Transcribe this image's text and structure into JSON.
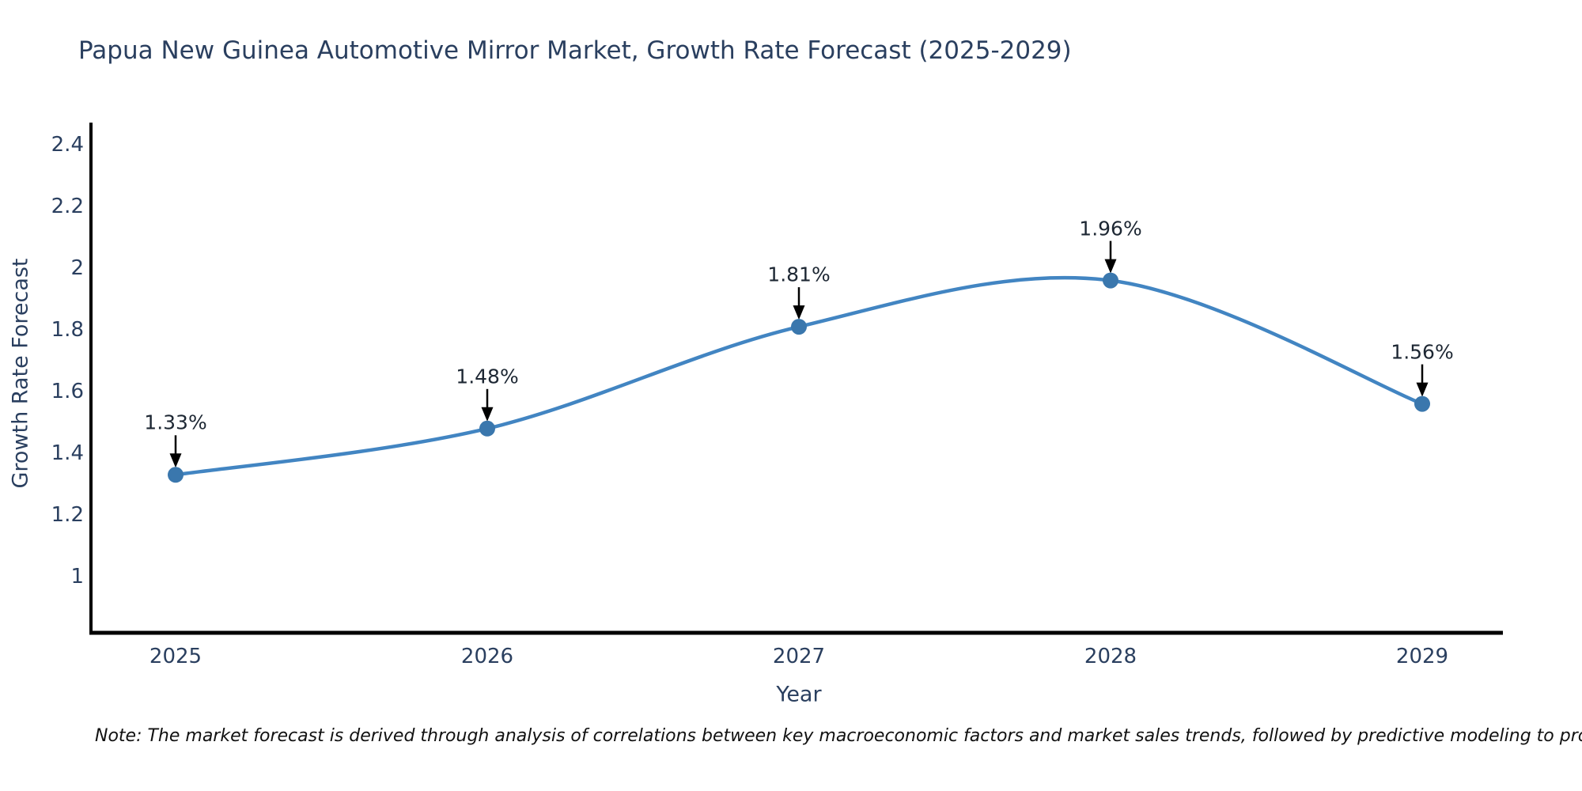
{
  "title": "Papua New Guinea Automotive Mirror Market, Growth Rate Forecast (2025-2029)",
  "note": "Note: The market forecast is derived through analysis of correlations between key macroeconomic factors and market sales trends, followed by predictive modeling to project future sales",
  "chart_data": {
    "type": "line",
    "line_shape": "spline",
    "title": "Papua New Guinea Automotive Mirror Market, Growth Rate Forecast (2025-2029)",
    "xlabel": "Year",
    "ylabel": "Growth Rate Forecast",
    "x": [
      "2025",
      "2026",
      "2027",
      "2028",
      "2029"
    ],
    "series": [
      {
        "name": "Growth Rate Forecast",
        "values": [
          1.33,
          1.48,
          1.81,
          1.96,
          1.56
        ]
      }
    ],
    "point_labels": [
      "1.33%",
      "1.48%",
      "1.81%",
      "1.96%",
      "1.56%"
    ],
    "y_tick_labels": [
      "1",
      "1.2",
      "1.4",
      "1.6",
      "1.8",
      "2",
      "2.2",
      "2.4"
    ],
    "y_tick_values": [
      1,
      1.2,
      1.4,
      1.6,
      1.8,
      2,
      2.2,
      2.4
    ],
    "ylim": [
      0.82,
      2.47
    ],
    "grid": false,
    "legend_position": "none",
    "markers": true,
    "annotations_with_arrows": true,
    "colors": {
      "line": "#4285c2",
      "marker": "#3a77ad",
      "axis": "#000000",
      "axis_text": "#2a3f5f",
      "annotation_text": "#1d2733",
      "arrow": "#000000",
      "background": "#ffffff"
    }
  }
}
